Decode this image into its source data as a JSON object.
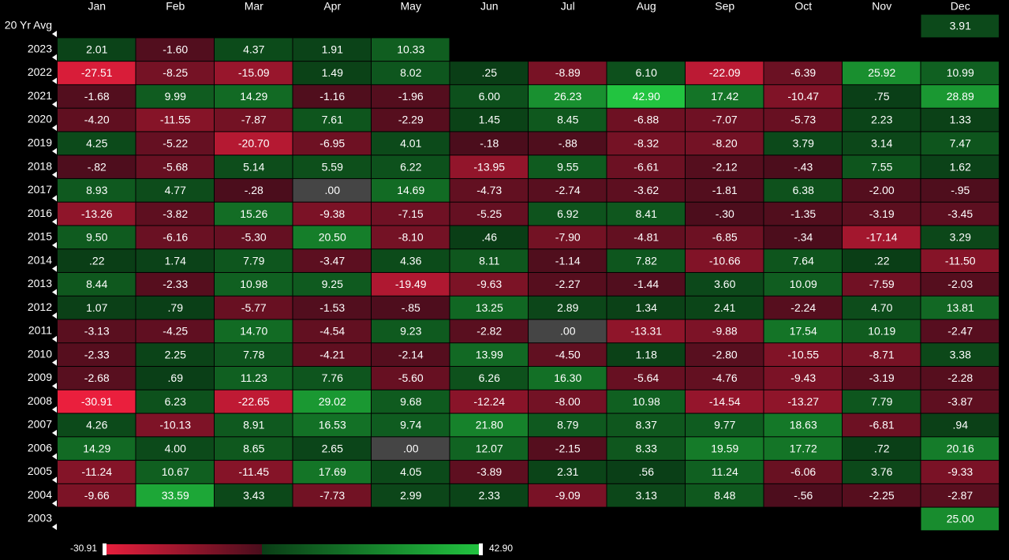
{
  "chart_data": {
    "type": "heatmap",
    "categories": [
      "Jan",
      "Feb",
      "Mar",
      "Apr",
      "May",
      "Jun",
      "Jul",
      "Aug",
      "Sep",
      "Oct",
      "Nov",
      "Dec"
    ],
    "series": [
      {
        "name": "20 Yr Avg",
        "values": [
          null,
          null,
          null,
          null,
          null,
          null,
          null,
          null,
          null,
          null,
          null,
          3.91
        ],
        "value_labels": [
          null,
          null,
          null,
          null,
          null,
          null,
          null,
          null,
          null,
          null,
          null,
          "3.91"
        ]
      },
      {
        "name": "2023",
        "values": [
          2.01,
          -1.6,
          4.37,
          1.91,
          10.33,
          null,
          null,
          null,
          null,
          null,
          null,
          null
        ],
        "value_labels": [
          "2.01",
          "-1.60",
          "4.37",
          "1.91",
          "10.33",
          null,
          null,
          null,
          null,
          null,
          null,
          null
        ]
      },
      {
        "name": "2022",
        "values": [
          -27.51,
          -8.25,
          -15.09,
          1.49,
          8.02,
          0.25,
          -8.89,
          6.1,
          -22.09,
          -6.39,
          25.92,
          10.99
        ],
        "value_labels": [
          "-27.51",
          "-8.25",
          "-15.09",
          "1.49",
          "8.02",
          ".25",
          "-8.89",
          "6.10",
          "-22.09",
          "-6.39",
          "25.92",
          "10.99"
        ]
      },
      {
        "name": "2021",
        "values": [
          -1.68,
          9.99,
          14.29,
          -1.16,
          -1.96,
          6.0,
          26.23,
          42.9,
          17.42,
          -10.47,
          0.75,
          28.89
        ],
        "value_labels": [
          "-1.68",
          "9.99",
          "14.29",
          "-1.16",
          "-1.96",
          "6.00",
          "26.23",
          "42.90",
          "17.42",
          "-10.47",
          ".75",
          "28.89"
        ]
      },
      {
        "name": "2020",
        "values": [
          -4.2,
          -11.55,
          -7.87,
          7.61,
          -2.29,
          1.45,
          8.45,
          -6.88,
          -7.07,
          -5.73,
          2.23,
          1.33
        ],
        "value_labels": [
          "-4.20",
          "-11.55",
          "-7.87",
          "7.61",
          "-2.29",
          "1.45",
          "8.45",
          "-6.88",
          "-7.07",
          "-5.73",
          "2.23",
          "1.33"
        ]
      },
      {
        "name": "2019",
        "values": [
          4.25,
          -5.22,
          -20.7,
          -6.95,
          4.01,
          -0.18,
          -0.88,
          -8.32,
          -8.2,
          3.79,
          3.14,
          7.47
        ],
        "value_labels": [
          "4.25",
          "-5.22",
          "-20.70",
          "-6.95",
          "4.01",
          "-.18",
          "-.88",
          "-8.32",
          "-8.20",
          "3.79",
          "3.14",
          "7.47"
        ]
      },
      {
        "name": "2018",
        "values": [
          -0.82,
          -5.68,
          5.14,
          5.59,
          6.22,
          -13.95,
          9.55,
          -6.61,
          -2.12,
          -0.43,
          7.55,
          1.62
        ],
        "value_labels": [
          "-.82",
          "-5.68",
          "5.14",
          "5.59",
          "6.22",
          "-13.95",
          "9.55",
          "-6.61",
          "-2.12",
          "-.43",
          "7.55",
          "1.62"
        ]
      },
      {
        "name": "2017",
        "values": [
          8.93,
          4.77,
          -0.28,
          0,
          14.69,
          -4.73,
          -2.74,
          -3.62,
          -1.81,
          6.38,
          -2.0,
          -0.95
        ],
        "value_labels": [
          "8.93",
          "4.77",
          "-.28",
          ".00",
          "14.69",
          "-4.73",
          "-2.74",
          "-3.62",
          "-1.81",
          "6.38",
          "-2.00",
          "-.95"
        ]
      },
      {
        "name": "2016",
        "values": [
          -13.26,
          -3.82,
          15.26,
          -9.38,
          -7.15,
          -5.25,
          6.92,
          8.41,
          -0.3,
          -1.35,
          -3.19,
          -3.45
        ],
        "value_labels": [
          "-13.26",
          "-3.82",
          "15.26",
          "-9.38",
          "-7.15",
          "-5.25",
          "6.92",
          "8.41",
          "-.30",
          "-1.35",
          "-3.19",
          "-3.45"
        ]
      },
      {
        "name": "2015",
        "values": [
          9.5,
          -6.16,
          -5.3,
          20.5,
          -8.1,
          0.46,
          -7.9,
          -4.81,
          -6.85,
          -0.34,
          -17.14,
          3.29
        ],
        "value_labels": [
          "9.50",
          "-6.16",
          "-5.30",
          "20.50",
          "-8.10",
          ".46",
          "-7.90",
          "-4.81",
          "-6.85",
          "-.34",
          "-17.14",
          "3.29"
        ]
      },
      {
        "name": "2014",
        "values": [
          0.22,
          1.74,
          7.79,
          -3.47,
          4.36,
          8.11,
          -1.14,
          7.82,
          -10.66,
          7.64,
          0.22,
          -11.5
        ],
        "value_labels": [
          ".22",
          "1.74",
          "7.79",
          "-3.47",
          "4.36",
          "8.11",
          "-1.14",
          "7.82",
          "-10.66",
          "7.64",
          ".22",
          "-11.50"
        ]
      },
      {
        "name": "2013",
        "values": [
          8.44,
          -2.33,
          10.98,
          9.25,
          -19.49,
          -9.63,
          -2.27,
          -1.44,
          3.6,
          10.09,
          -7.59,
          -2.03
        ],
        "value_labels": [
          "8.44",
          "-2.33",
          "10.98",
          "9.25",
          "-19.49",
          "-9.63",
          "-2.27",
          "-1.44",
          "3.60",
          "10.09",
          "-7.59",
          "-2.03"
        ]
      },
      {
        "name": "2012",
        "values": [
          1.07,
          0.79,
          -5.77,
          -1.53,
          -0.85,
          13.25,
          2.89,
          1.34,
          2.41,
          -2.24,
          4.7,
          13.81
        ],
        "value_labels": [
          "1.07",
          ".79",
          "-5.77",
          "-1.53",
          "-.85",
          "13.25",
          "2.89",
          "1.34",
          "2.41",
          "-2.24",
          "4.70",
          "13.81"
        ]
      },
      {
        "name": "2011",
        "values": [
          -3.13,
          -4.25,
          14.7,
          -4.54,
          9.23,
          -2.82,
          0,
          -13.31,
          -9.88,
          17.54,
          10.19,
          -2.47
        ],
        "value_labels": [
          "-3.13",
          "-4.25",
          "14.70",
          "-4.54",
          "9.23",
          "-2.82",
          ".00",
          "-13.31",
          "-9.88",
          "17.54",
          "10.19",
          "-2.47"
        ]
      },
      {
        "name": "2010",
        "values": [
          -2.33,
          2.25,
          7.78,
          -4.21,
          -2.14,
          13.99,
          -4.5,
          1.18,
          -2.8,
          -10.55,
          -8.71,
          3.38
        ],
        "value_labels": [
          "-2.33",
          "2.25",
          "7.78",
          "-4.21",
          "-2.14",
          "13.99",
          "-4.50",
          "1.18",
          "-2.80",
          "-10.55",
          "-8.71",
          "3.38"
        ]
      },
      {
        "name": "2009",
        "values": [
          -2.68,
          0.69,
          11.23,
          7.76,
          -5.6,
          6.26,
          16.3,
          -5.64,
          -4.76,
          -9.43,
          -3.19,
          -2.28
        ],
        "value_labels": [
          "-2.68",
          ".69",
          "11.23",
          "7.76",
          "-5.60",
          "6.26",
          "16.30",
          "-5.64",
          "-4.76",
          "-9.43",
          "-3.19",
          "-2.28"
        ]
      },
      {
        "name": "2008",
        "values": [
          -30.91,
          6.23,
          -22.65,
          29.02,
          9.68,
          -12.24,
          -8.0,
          10.98,
          -14.54,
          -13.27,
          7.79,
          -3.87
        ],
        "value_labels": [
          "-30.91",
          "6.23",
          "-22.65",
          "29.02",
          "9.68",
          "-12.24",
          "-8.00",
          "10.98",
          "-14.54",
          "-13.27",
          "7.79",
          "-3.87"
        ]
      },
      {
        "name": "2007",
        "values": [
          4.26,
          -10.13,
          8.91,
          16.53,
          9.74,
          21.8,
          8.79,
          8.37,
          9.77,
          18.63,
          -6.81,
          0.94
        ],
        "value_labels": [
          "4.26",
          "-10.13",
          "8.91",
          "16.53",
          "9.74",
          "21.80",
          "8.79",
          "8.37",
          "9.77",
          "18.63",
          "-6.81",
          ".94"
        ]
      },
      {
        "name": "2006",
        "values": [
          14.29,
          4.0,
          8.65,
          2.65,
          0,
          12.07,
          -2.15,
          8.33,
          19.59,
          17.72,
          0.72,
          20.16
        ],
        "value_labels": [
          "14.29",
          "4.00",
          "8.65",
          "2.65",
          ".00",
          "12.07",
          "-2.15",
          "8.33",
          "19.59",
          "17.72",
          ".72",
          "20.16"
        ]
      },
      {
        "name": "2005",
        "values": [
          -11.24,
          10.67,
          -11.45,
          17.69,
          4.05,
          -3.89,
          2.31,
          0.56,
          11.24,
          -6.06,
          3.76,
          -9.33
        ],
        "value_labels": [
          "-11.24",
          "10.67",
          "-11.45",
          "17.69",
          "4.05",
          "-3.89",
          "2.31",
          ".56",
          "11.24",
          "-6.06",
          "3.76",
          "-9.33"
        ]
      },
      {
        "name": "2004",
        "values": [
          -9.66,
          33.59,
          3.43,
          -7.73,
          2.99,
          2.33,
          -9.09,
          3.13,
          8.48,
          -0.56,
          -2.25,
          -2.87
        ],
        "value_labels": [
          "-9.66",
          "33.59",
          "3.43",
          "-7.73",
          "2.99",
          "2.33",
          "-9.09",
          "3.13",
          "8.48",
          "-.56",
          "-2.25",
          "-2.87"
        ]
      },
      {
        "name": "2003",
        "values": [
          null,
          null,
          null,
          null,
          null,
          null,
          null,
          null,
          null,
          null,
          null,
          25.0
        ],
        "value_labels": [
          null,
          null,
          null,
          null,
          null,
          null,
          null,
          null,
          null,
          null,
          null,
          "25.00"
        ]
      }
    ],
    "zlim": [
      -30.91,
      42.9
    ],
    "zticks": [
      -30.91,
      {
        "value": 42.9,
        "label": "42.90"
      }
    ],
    "color_scale": {
      "min_color": "#ea1f3d",
      "negative_dark": "#4a0d1c",
      "positive_dark": "#0a3d16",
      "max_color": "#22c440",
      "zero_color": "#454545"
    }
  }
}
